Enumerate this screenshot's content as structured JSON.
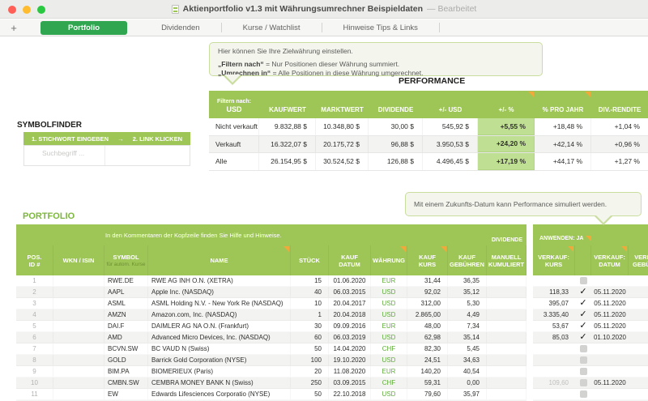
{
  "window": {
    "title": "Aktienportfolio v1.3 mit Währungsumrechner Beispieldaten",
    "edited_suffix": "— Bearbeitet"
  },
  "tabbar": {
    "add_label": "+",
    "tabs": [
      {
        "label": "Portfolio",
        "active": true
      },
      {
        "label": "Dividenden",
        "active": false
      },
      {
        "label": "Kurse / Watchlist",
        "active": false
      },
      {
        "label": "Hinweise Tips & Links",
        "active": false
      }
    ]
  },
  "tooltips": {
    "currency": {
      "intro": "Hier können Sie Ihre Zielwährung einstellen.",
      "term1": "„Filtern nach“",
      "def1": "=  Nur Positionen dieser Währung summiert.",
      "term2": "„Umrechnen in“",
      "def2": "=  Alle Positionen in diese Währung umgerechnet."
    },
    "future_date": {
      "text": "Mit einem Zukunfts-Datum kann Performance simuliert werden."
    }
  },
  "performance": {
    "title": "PERFORMANCE",
    "header": {
      "filter_label": "Filtern nach:",
      "filter_value": "USD",
      "kaufwert": "KAUFWERT",
      "marktwert": "MARKTWERT",
      "dividende": "DIVIDENDE",
      "usd": "+/- USD",
      "pct": "+/- %",
      "pro_jahr": "% PRO JAHR",
      "div_rendite": "DIV.-RENDITE"
    },
    "rows": [
      {
        "label": "Nicht verkauft",
        "kaufwert": "9.832,88 $",
        "marktwert": "10.348,80 $",
        "dividende": "30,00 $",
        "usd": "545,92 $",
        "pct": "+5,55 %",
        "pro_jahr": "+18,48 %",
        "div_rendite": "+1,04 %"
      },
      {
        "label": "Verkauft",
        "kaufwert": "16.322,07 $",
        "marktwert": "20.175,72 $",
        "dividende": "96,88 $",
        "usd": "3.950,53 $",
        "pct": "+24,20 %",
        "pro_jahr": "+42,14 %",
        "div_rendite": "+0,96 %"
      },
      {
        "label": "Alle",
        "kaufwert": "26.154,95 $",
        "marktwert": "30.524,52 $",
        "dividende": "126,88 $",
        "usd": "4.496,45 $",
        "pct": "+17,19 %",
        "pro_jahr": "+44,17 %",
        "div_rendite": "+1,27 %"
      }
    ]
  },
  "symbolfinder": {
    "title": "SYMBOLFINDER",
    "step1": "1. STICHWORT EINGEBEN",
    "arrow": "→",
    "step2": "2. LINK KLICKEN",
    "placeholder": "Suchbegriff ..."
  },
  "portfolio": {
    "title": "PORTFOLIO",
    "banner": "In den Kommentaren der Kopfzeile finden Sie Hilfe und Hinweise.",
    "dividende_group": "DIVIDENDE",
    "anwenden_label": "ANWENDEN:  JA",
    "headers": {
      "pos1": "POS.",
      "pos2": "ID #",
      "wkn": "WKN / ISIN",
      "symbol": "SYMBOL",
      "symbol_sub": "für autom. Kurse",
      "name": "NAME",
      "stueck": "STÜCK",
      "kauf_datum1": "KAUF",
      "kauf_datum2": "DATUM",
      "waehrung": "WÄHRUNG",
      "kauf_kurs1": "KAUF",
      "kauf_kurs2": "KURS",
      "kauf_geb1": "KAUF",
      "kauf_geb2": "GEBÜHREN",
      "manuell1": "MANUELL",
      "manuell2": "KUMULIERT",
      "verkauf_kurs1": "VERKAUF:",
      "verkauf_kurs2": "KURS",
      "verkauf_datum1": "VERKAUF:",
      "verkauf_datum2": "DATUM",
      "verkauf_geb1": "VERKAUF:",
      "verkauf_geb2": "GEBÜHREN"
    },
    "rows": [
      {
        "id": "1",
        "wkn": "",
        "symbol": "RWE.DE",
        "name": "RWE AG  INH O.N. (XETRA)",
        "stueck": "15",
        "kauf_datum": "01.06.2020",
        "waehrung": "EUR",
        "kauf_kurs": "31,44",
        "kauf_gebuehren": "36,35",
        "dividende": "",
        "verkauf_kurs": "",
        "anwenden": false,
        "verkauf_datum": "",
        "muted": false
      },
      {
        "id": "2",
        "wkn": "",
        "symbol": "AAPL",
        "name": "Apple Inc. (NASDAQ)",
        "stueck": "40",
        "kauf_datum": "06.03.2015",
        "waehrung": "USD",
        "kauf_kurs": "92,02",
        "kauf_gebuehren": "35,12",
        "dividende": "",
        "verkauf_kurs": "118,33",
        "anwenden": true,
        "verkauf_datum": "05.11.2020",
        "muted": false
      },
      {
        "id": "3",
        "wkn": "",
        "symbol": "ASML",
        "name": "ASML Holding N.V. - New York Re (NASDAQ)",
        "stueck": "10",
        "kauf_datum": "20.04.2017",
        "waehrung": "USD",
        "kauf_kurs": "312,00",
        "kauf_gebuehren": "5,30",
        "dividende": "",
        "verkauf_kurs": "395,07",
        "anwenden": true,
        "verkauf_datum": "05.11.2020",
        "muted": false
      },
      {
        "id": "4",
        "wkn": "",
        "symbol": "AMZN",
        "name": "Amazon.com, Inc. (NASDAQ)",
        "stueck": "1",
        "kauf_datum": "20.04.2018",
        "waehrung": "USD",
        "kauf_kurs": "2.865,00",
        "kauf_gebuehren": "4,49",
        "dividende": "",
        "verkauf_kurs": "3.335,40",
        "anwenden": true,
        "verkauf_datum": "05.11.2020",
        "muted": false
      },
      {
        "id": "5",
        "wkn": "",
        "symbol": "DAI.F",
        "name": "DAIMLER AG NA O.N. (Frankfurt)",
        "stueck": "30",
        "kauf_datum": "09.09.2016",
        "waehrung": "EUR",
        "kauf_kurs": "48,00",
        "kauf_gebuehren": "7,34",
        "dividende": "",
        "verkauf_kurs": "53,67",
        "anwenden": true,
        "verkauf_datum": "05.11.2020",
        "muted": false
      },
      {
        "id": "6",
        "wkn": "",
        "symbol": "AMD",
        "name": "Advanced Micro Devices, Inc. (NASDAQ)",
        "stueck": "60",
        "kauf_datum": "06.03.2019",
        "waehrung": "USD",
        "kauf_kurs": "62,98",
        "kauf_gebuehren": "35,14",
        "dividende": "",
        "verkauf_kurs": "85,03",
        "anwenden": true,
        "verkauf_datum": "01.10.2020",
        "muted": false
      },
      {
        "id": "7",
        "wkn": "",
        "symbol": "BCVN.SW",
        "name": "BC VAUD N (Swiss)",
        "stueck": "50",
        "kauf_datum": "14.04.2020",
        "waehrung": "CHF",
        "kauf_kurs": "82,30",
        "kauf_gebuehren": "5,45",
        "dividende": "",
        "verkauf_kurs": "",
        "anwenden": false,
        "verkauf_datum": "",
        "muted": false
      },
      {
        "id": "8",
        "wkn": "",
        "symbol": "GOLD",
        "name": "Barrick Gold Corporation (NYSE)",
        "stueck": "100",
        "kauf_datum": "19.10.2020",
        "waehrung": "USD",
        "kauf_kurs": "24,51",
        "kauf_gebuehren": "34,63",
        "dividende": "",
        "verkauf_kurs": "",
        "anwenden": false,
        "verkauf_datum": "",
        "muted": false
      },
      {
        "id": "9",
        "wkn": "",
        "symbol": "BIM.PA",
        "name": "BIOMERIEUX (Paris)",
        "stueck": "20",
        "kauf_datum": "11.08.2020",
        "waehrung": "EUR",
        "kauf_kurs": "140,20",
        "kauf_gebuehren": "40,54",
        "dividende": "",
        "verkauf_kurs": "",
        "anwenden": false,
        "verkauf_datum": "",
        "muted": false
      },
      {
        "id": "10",
        "wkn": "",
        "symbol": "CMBN.SW",
        "name": "CEMBRA MONEY BANK N (Swiss)",
        "stueck": "250",
        "kauf_datum": "03.09.2015",
        "waehrung": "CHF",
        "kauf_kurs": "59,31",
        "kauf_gebuehren": "0,00",
        "dividende": "",
        "verkauf_kurs": "109,60",
        "anwenden": false,
        "verkauf_datum": "05.11.2020",
        "muted": true
      },
      {
        "id": "11",
        "wkn": "",
        "symbol": "EW",
        "name": "Edwards Lifesciences Corporatio (NYSE)",
        "stueck": "50",
        "kauf_datum": "22.10.2018",
        "waehrung": "USD",
        "kauf_kurs": "79,60",
        "kauf_gebuehren": "35,97",
        "dividende": "",
        "verkauf_kurs": "",
        "anwenden": false,
        "verkauf_datum": "",
        "muted": false
      }
    ]
  },
  "colors": {
    "header_green": "#9ec656",
    "active_tab_green": "#2fa64f",
    "highlight_green": "#bfdf92",
    "currency_green": "#5fae3a",
    "comment_orange": "#f2a93c"
  }
}
